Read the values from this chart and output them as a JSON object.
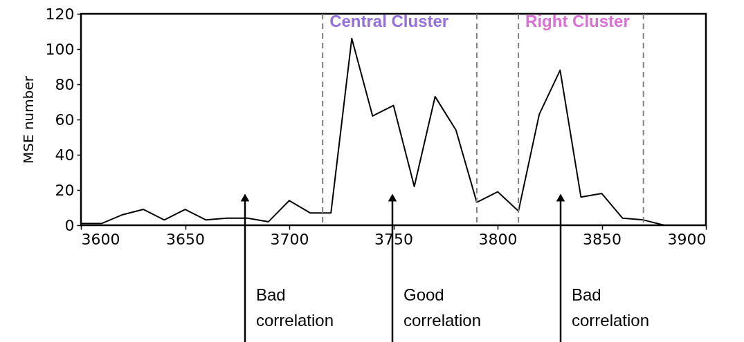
{
  "chart_data": {
    "type": "line",
    "ylabel": "MSE number",
    "x": [
      3600,
      3610,
      3620,
      3630,
      3640,
      3650,
      3660,
      3670,
      3680,
      3690,
      3700,
      3710,
      3720,
      3730,
      3740,
      3750,
      3760,
      3770,
      3780,
      3790,
      3800,
      3810,
      3820,
      3830,
      3840,
      3850,
      3860,
      3870,
      3880
    ],
    "series": [
      {
        "color": "#000000",
        "values": [
          1,
          1,
          6,
          9,
          3,
          9,
          3,
          4,
          4,
          2,
          14,
          7,
          7,
          106,
          62,
          68,
          22,
          73,
          54,
          13,
          19,
          8,
          63,
          88,
          16,
          18,
          4,
          3,
          0
        ]
      }
    ],
    "xlim": [
      3600,
      3900
    ],
    "xticks": [
      3600,
      3650,
      3700,
      3750,
      3800,
      3850,
      3900
    ],
    "ylim": [
      0,
      120
    ],
    "yticks": [
      0,
      20,
      40,
      60,
      80,
      100,
      120
    ],
    "grid": false,
    "marker": "none",
    "line_style": "solid",
    "ref_lines": [
      {
        "axis": "x",
        "value": 3716,
        "label": "Central Cluster",
        "line_style": "dashed"
      },
      {
        "axis": "x",
        "value": 3790,
        "line_style": "dashed"
      },
      {
        "axis": "x",
        "value": 3810,
        "label": "Right Cluster",
        "line_style": "dashed"
      },
      {
        "axis": "x",
        "value": 3870,
        "line_style": "dashed"
      }
    ],
    "annotations": [
      "Bad\ncorrelation",
      "Good\ncorrelation",
      "Bad\ncorrelation"
    ]
  }
}
